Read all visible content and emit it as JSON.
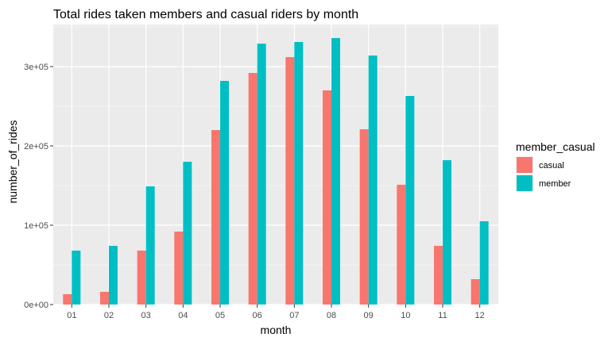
{
  "chart_data": {
    "type": "bar",
    "title": "Total rides taken members and casual riders by month",
    "xlabel": "month",
    "ylabel": "number_of_rides",
    "categories": [
      "01",
      "02",
      "03",
      "04",
      "05",
      "06",
      "07",
      "08",
      "09",
      "10",
      "11",
      "12"
    ],
    "series": [
      {
        "name": "casual",
        "color": "#F8766D",
        "values": [
          13000,
          16000,
          68000,
          92000,
          220000,
          292000,
          312000,
          270000,
          221000,
          151000,
          74000,
          32000
        ]
      },
      {
        "name": "member",
        "color": "#00BFC4",
        "values": [
          68000,
          74000,
          149000,
          180000,
          282000,
          329000,
          331000,
          336000,
          314000,
          263000,
          182000,
          105000
        ]
      }
    ],
    "ylim": [
      0,
      353000
    ],
    "y_ticks": [
      0,
      100000,
      200000,
      300000
    ],
    "y_tick_labels": [
      "0e+00",
      "1e+05",
      "2e+05",
      "3e+05"
    ],
    "grid": true,
    "legend": {
      "title": "member_casual",
      "position": "right"
    },
    "panel_background": "#EBEBEB",
    "grid_color": "#FFFFFF"
  }
}
